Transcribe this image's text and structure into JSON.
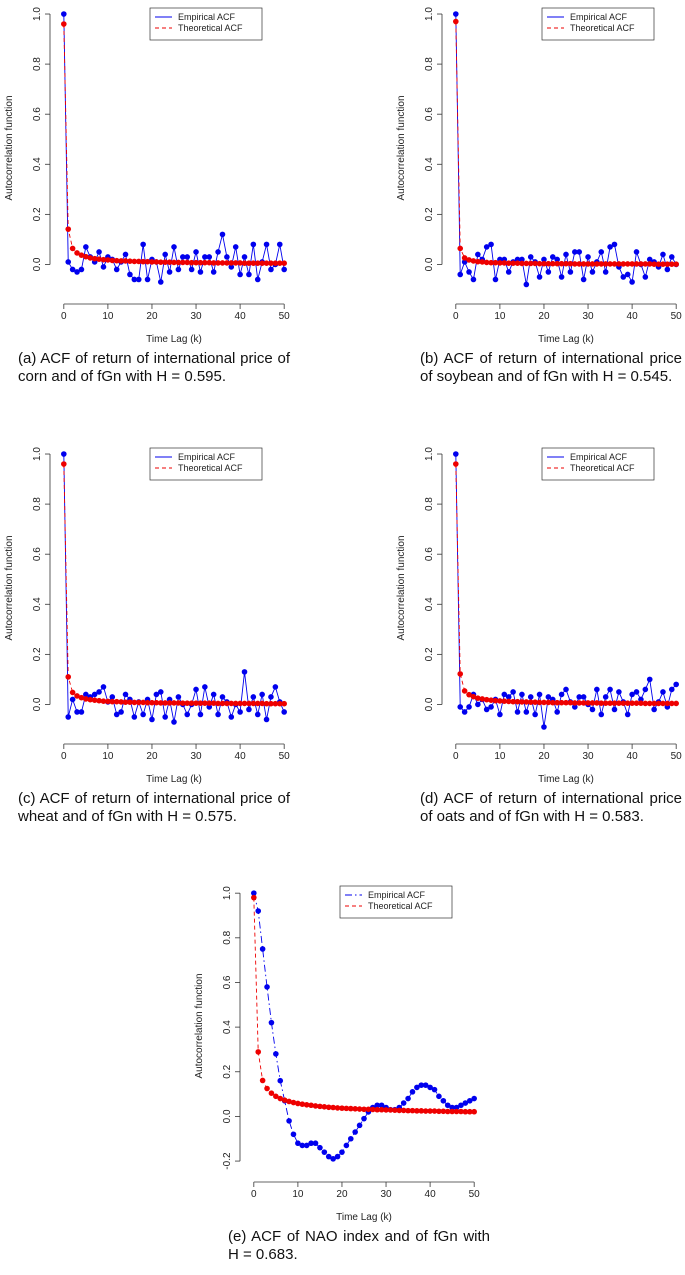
{
  "chart_data": [
    {
      "type": "line",
      "caption": "(a) ACF of return of international price of corn and of fGn with H = 0.595.",
      "xlabel": "Time Lag (k)",
      "ylabel": "Autocorrelation function",
      "legend": "top right",
      "x": [
        0,
        1,
        2,
        3,
        4,
        5,
        6,
        7,
        8,
        9,
        10,
        11,
        12,
        13,
        14,
        15,
        16,
        17,
        18,
        19,
        20,
        21,
        22,
        23,
        24,
        25,
        26,
        27,
        28,
        29,
        30,
        31,
        32,
        33,
        34,
        35,
        36,
        37,
        38,
        39,
        40,
        41,
        42,
        43,
        44,
        45,
        46,
        47,
        48,
        49,
        50
      ],
      "xlim": [
        -2,
        52
      ],
      "xticks": [
        0,
        10,
        20,
        30,
        40,
        50
      ],
      "ylim": [
        -0.11,
        1.04
      ],
      "yticks": [
        {
          "value": 0,
          "label": "0.0"
        },
        0.2,
        0.4,
        0.6,
        0.8,
        {
          "value": 1,
          "label": "1.0"
        }
      ],
      "series": [
        {
          "name": "Empirical ACF",
          "color": "#0000ee",
          "linestyle": "solid",
          "values": [
            1.0,
            0.01,
            -0.02,
            -0.03,
            -0.02,
            0.07,
            0.03,
            0.01,
            0.05,
            -0.01,
            0.03,
            0.02,
            -0.02,
            0.01,
            0.04,
            -0.04,
            -0.06,
            -0.06,
            0.08,
            -0.06,
            0.02,
            0.01,
            -0.07,
            0.04,
            -0.03,
            0.07,
            -0.02,
            0.03,
            0.03,
            -0.02,
            0.05,
            -0.03,
            0.03,
            0.03,
            -0.03,
            0.05,
            0.12,
            0.03,
            -0.01,
            0.07,
            -0.04,
            0.03,
            -0.04,
            0.08,
            -0.06,
            0.01,
            0.08,
            -0.02,
            0.0,
            0.08,
            -0.02
          ]
        },
        {
          "name": "Theoretical ACF",
          "color": "#ee0000",
          "linestyle": "dashed",
          "values": [
            0.96,
            0.141,
            0.064,
            0.046,
            0.037,
            0.031,
            0.026,
            0.023,
            0.021,
            0.019,
            0.018,
            0.016,
            0.015,
            0.014,
            0.014,
            0.013,
            0.012,
            0.012,
            0.011,
            0.011,
            0.01,
            0.01,
            0.009,
            0.009,
            0.009,
            0.008,
            0.008,
            0.008,
            0.008,
            0.007,
            0.007,
            0.007,
            0.007,
            0.007,
            0.006,
            0.006,
            0.006,
            0.006,
            0.006,
            0.006,
            0.006,
            0.005,
            0.005,
            0.005,
            0.005,
            0.005,
            0.005,
            0.005,
            0.005,
            0.005,
            0.005
          ]
        }
      ]
    },
    {
      "type": "line",
      "caption": "(b) ACF of return of international price of soybean and of fGn with H = 0.545.",
      "xlabel": "Time Lag (k)",
      "ylabel": "Autocorrelation function",
      "legend": "top right",
      "x": [
        0,
        1,
        2,
        3,
        4,
        5,
        6,
        7,
        8,
        9,
        10,
        11,
        12,
        13,
        14,
        15,
        16,
        17,
        18,
        19,
        20,
        21,
        22,
        23,
        24,
        25,
        26,
        27,
        28,
        29,
        30,
        31,
        32,
        33,
        34,
        35,
        36,
        37,
        38,
        39,
        40,
        41,
        42,
        43,
        44,
        45,
        46,
        47,
        48,
        49,
        50
      ],
      "xlim": [
        -2,
        52
      ],
      "xticks": [
        0,
        10,
        20,
        30,
        40,
        50
      ],
      "ylim": [
        -0.11,
        1.04
      ],
      "yticks": [
        {
          "value": 0,
          "label": "0.0"
        },
        0.2,
        0.4,
        0.6,
        0.8,
        {
          "value": 1,
          "label": "1.0"
        }
      ],
      "series": [
        {
          "name": "Empirical ACF",
          "color": "#0000ee",
          "linestyle": "solid",
          "values": [
            1.0,
            -0.04,
            0.01,
            -0.03,
            -0.06,
            0.04,
            0.02,
            0.07,
            0.08,
            -0.06,
            0.02,
            0.02,
            -0.03,
            0.01,
            0.02,
            0.02,
            -0.08,
            0.03,
            0.01,
            -0.05,
            0.02,
            -0.03,
            0.03,
            0.02,
            -0.05,
            0.04,
            -0.03,
            0.05,
            0.05,
            -0.06,
            0.03,
            -0.03,
            0.01,
            0.05,
            -0.03,
            0.07,
            0.08,
            -0.01,
            -0.05,
            -0.04,
            -0.07,
            0.05,
            0.0,
            -0.05,
            0.02,
            0.01,
            -0.01,
            0.04,
            -0.02,
            0.03,
            0.0
          ]
        },
        {
          "name": "Theoretical ACF",
          "color": "#ee0000",
          "linestyle": "dashed",
          "values": [
            0.97,
            0.064,
            0.026,
            0.018,
            0.014,
            0.011,
            0.01,
            0.008,
            0.007,
            0.007,
            0.006,
            0.006,
            0.005,
            0.005,
            0.005,
            0.004,
            0.004,
            0.004,
            0.004,
            0.003,
            0.003,
            0.003,
            0.003,
            0.003,
            0.003,
            0.003,
            0.003,
            0.002,
            0.002,
            0.002,
            0.002,
            0.002,
            0.002,
            0.002,
            0.002,
            0.002,
            0.002,
            0.002,
            0.002,
            0.002,
            0.002,
            0.002,
            0.002,
            0.002,
            0.002,
            0.001,
            0.001,
            0.001,
            0.001,
            0.001,
            0.001
          ]
        }
      ]
    },
    {
      "type": "line",
      "caption": "(c) ACF of return of international price of wheat and of fGn with H = 0.575.",
      "xlabel": "Time Lag (k)",
      "ylabel": "Autocorrelation function",
      "legend": "top right",
      "x": [
        0,
        1,
        2,
        3,
        4,
        5,
        6,
        7,
        8,
        9,
        10,
        11,
        12,
        13,
        14,
        15,
        16,
        17,
        18,
        19,
        20,
        21,
        22,
        23,
        24,
        25,
        26,
        27,
        28,
        29,
        30,
        31,
        32,
        33,
        34,
        35,
        36,
        37,
        38,
        39,
        40,
        41,
        42,
        43,
        44,
        45,
        46,
        47,
        48,
        49,
        50
      ],
      "xlim": [
        -2,
        52
      ],
      "xticks": [
        0,
        10,
        20,
        30,
        40,
        50
      ],
      "ylim": [
        -0.11,
        1.04
      ],
      "yticks": [
        {
          "value": 0,
          "label": "0.0"
        },
        0.2,
        0.4,
        0.6,
        0.8,
        {
          "value": 1,
          "label": "1.0"
        }
      ],
      "series": [
        {
          "name": "Empirical ACF",
          "color": "#0000ee",
          "linestyle": "solid",
          "values": [
            1.0,
            -0.05,
            0.02,
            -0.03,
            -0.03,
            0.04,
            0.03,
            0.04,
            0.05,
            0.07,
            0.01,
            0.03,
            -0.04,
            -0.03,
            0.04,
            0.02,
            -0.05,
            0.01,
            -0.04,
            0.02,
            -0.06,
            0.04,
            0.05,
            -0.05,
            0.02,
            -0.07,
            0.03,
            0.0,
            -0.04,
            0.0,
            0.06,
            -0.04,
            0.07,
            -0.01,
            0.04,
            -0.04,
            0.03,
            0.01,
            -0.05,
            0.0,
            -0.03,
            0.13,
            -0.02,
            0.03,
            -0.04,
            0.04,
            -0.06,
            0.03,
            0.07,
            0.01,
            -0.03
          ]
        },
        {
          "name": "Theoretical ACF",
          "color": "#ee0000",
          "linestyle": "dashed",
          "values": [
            0.96,
            0.11,
            0.048,
            0.034,
            0.027,
            0.022,
            0.019,
            0.017,
            0.015,
            0.013,
            0.012,
            0.011,
            0.011,
            0.01,
            0.009,
            0.009,
            0.008,
            0.008,
            0.008,
            0.007,
            0.007,
            0.007,
            0.006,
            0.006,
            0.006,
            0.006,
            0.006,
            0.005,
            0.005,
            0.005,
            0.005,
            0.005,
            0.005,
            0.005,
            0.005,
            0.004,
            0.004,
            0.004,
            0.004,
            0.004,
            0.004,
            0.004,
            0.004,
            0.004,
            0.004,
            0.004,
            0.003,
            0.003,
            0.003,
            0.003,
            0.003
          ]
        }
      ]
    },
    {
      "type": "line",
      "caption": "(d) ACF of return of international price of oats and of fGn with H = 0.583.",
      "xlabel": "Time Lag (k)",
      "ylabel": "Autocorrelation function",
      "legend": "top right",
      "x": [
        0,
        1,
        2,
        3,
        4,
        5,
        6,
        7,
        8,
        9,
        10,
        11,
        12,
        13,
        14,
        15,
        16,
        17,
        18,
        19,
        20,
        21,
        22,
        23,
        24,
        25,
        26,
        27,
        28,
        29,
        30,
        31,
        32,
        33,
        34,
        35,
        36,
        37,
        38,
        39,
        40,
        41,
        42,
        43,
        44,
        45,
        46,
        47,
        48,
        49,
        50
      ],
      "xlim": [
        -2,
        52
      ],
      "xticks": [
        0,
        10,
        20,
        30,
        40,
        50
      ],
      "ylim": [
        -0.11,
        1.04
      ],
      "yticks": [
        {
          "value": 0,
          "label": "0.0"
        },
        0.2,
        0.4,
        0.6,
        0.8,
        {
          "value": 1,
          "label": "1.0"
        }
      ],
      "series": [
        {
          "name": "Empirical ACF",
          "color": "#0000ee",
          "linestyle": "solid",
          "values": [
            1.0,
            -0.01,
            -0.03,
            -0.01,
            0.04,
            0.0,
            0.02,
            -0.02,
            -0.01,
            0.02,
            -0.04,
            0.04,
            0.03,
            0.05,
            -0.03,
            0.04,
            -0.03,
            0.03,
            -0.04,
            0.04,
            -0.09,
            0.03,
            0.02,
            -0.03,
            0.04,
            0.06,
            0.01,
            -0.01,
            0.03,
            0.03,
            0.0,
            -0.02,
            0.06,
            -0.04,
            0.03,
            0.06,
            -0.02,
            0.05,
            0.01,
            -0.04,
            0.04,
            0.05,
            0.02,
            0.06,
            0.1,
            -0.02,
            0.01,
            0.05,
            -0.01,
            0.06,
            0.08
          ]
        },
        {
          "name": "Theoretical ACF",
          "color": "#ee0000",
          "linestyle": "dashed",
          "values": [
            0.96,
            0.122,
            0.054,
            0.039,
            0.031,
            0.025,
            0.022,
            0.019,
            0.017,
            0.015,
            0.014,
            0.013,
            0.012,
            0.011,
            0.011,
            0.01,
            0.01,
            0.009,
            0.009,
            0.008,
            0.008,
            0.008,
            0.007,
            0.007,
            0.007,
            0.007,
            0.007,
            0.006,
            0.006,
            0.006,
            0.006,
            0.006,
            0.006,
            0.005,
            0.005,
            0.005,
            0.005,
            0.005,
            0.005,
            0.005,
            0.005,
            0.005,
            0.005,
            0.004,
            0.004,
            0.004,
            0.004,
            0.004,
            0.004,
            0.004,
            0.004
          ]
        }
      ]
    },
    {
      "type": "line",
      "caption": "(e) ACF of NAO index and of fGn with H = 0.683.",
      "xlabel": "Time Lag (k)",
      "ylabel": "Autocorrelation function",
      "legend": "top right",
      "x": [
        0,
        1,
        2,
        3,
        4,
        5,
        6,
        7,
        8,
        9,
        10,
        11,
        12,
        13,
        14,
        15,
        16,
        17,
        18,
        19,
        20,
        21,
        22,
        23,
        24,
        25,
        26,
        27,
        28,
        29,
        30,
        31,
        32,
        33,
        34,
        35,
        36,
        37,
        38,
        39,
        40,
        41,
        42,
        43,
        44,
        45,
        46,
        47,
        48,
        49,
        50
      ],
      "xlim": [
        -2,
        52
      ],
      "xticks": [
        0,
        10,
        20,
        30,
        40,
        50
      ],
      "ylim": [
        -0.24,
        1.05
      ],
      "yticks": [
        -0.2,
        {
          "value": 0,
          "label": "0.0"
        },
        0.2,
        0.4,
        0.6,
        0.8,
        {
          "value": 1,
          "label": "1.0"
        }
      ],
      "series": [
        {
          "name": "Empirical ACF",
          "color": "#0000ee",
          "linestyle": "dashdot",
          "values": [
            1.0,
            0.92,
            0.75,
            0.58,
            0.42,
            0.28,
            0.16,
            0.07,
            -0.02,
            -0.08,
            -0.12,
            -0.13,
            -0.13,
            -0.12,
            -0.12,
            -0.14,
            -0.16,
            -0.18,
            -0.19,
            -0.18,
            -0.16,
            -0.13,
            -0.1,
            -0.07,
            -0.04,
            -0.01,
            0.02,
            0.04,
            0.05,
            0.05,
            0.04,
            0.03,
            0.03,
            0.04,
            0.06,
            0.08,
            0.11,
            0.13,
            0.14,
            0.14,
            0.13,
            0.12,
            0.09,
            0.07,
            0.05,
            0.04,
            0.04,
            0.05,
            0.06,
            0.07,
            0.08
          ]
        },
        {
          "name": "Theoretical ACF",
          "color": "#ee0000",
          "linestyle": "dashed",
          "values": [
            0.98,
            0.289,
            0.161,
            0.125,
            0.104,
            0.09,
            0.08,
            0.073,
            0.067,
            0.062,
            0.058,
            0.055,
            0.052,
            0.05,
            0.047,
            0.045,
            0.043,
            0.041,
            0.04,
            0.038,
            0.037,
            0.036,
            0.035,
            0.034,
            0.033,
            0.032,
            0.032,
            0.031,
            0.03,
            0.03,
            0.029,
            0.029,
            0.028,
            0.027,
            0.027,
            0.026,
            0.026,
            0.025,
            0.025,
            0.024,
            0.024,
            0.024,
            0.023,
            0.023,
            0.022,
            0.022,
            0.022,
            0.022,
            0.021,
            0.021,
            0.021
          ]
        }
      ]
    }
  ]
}
